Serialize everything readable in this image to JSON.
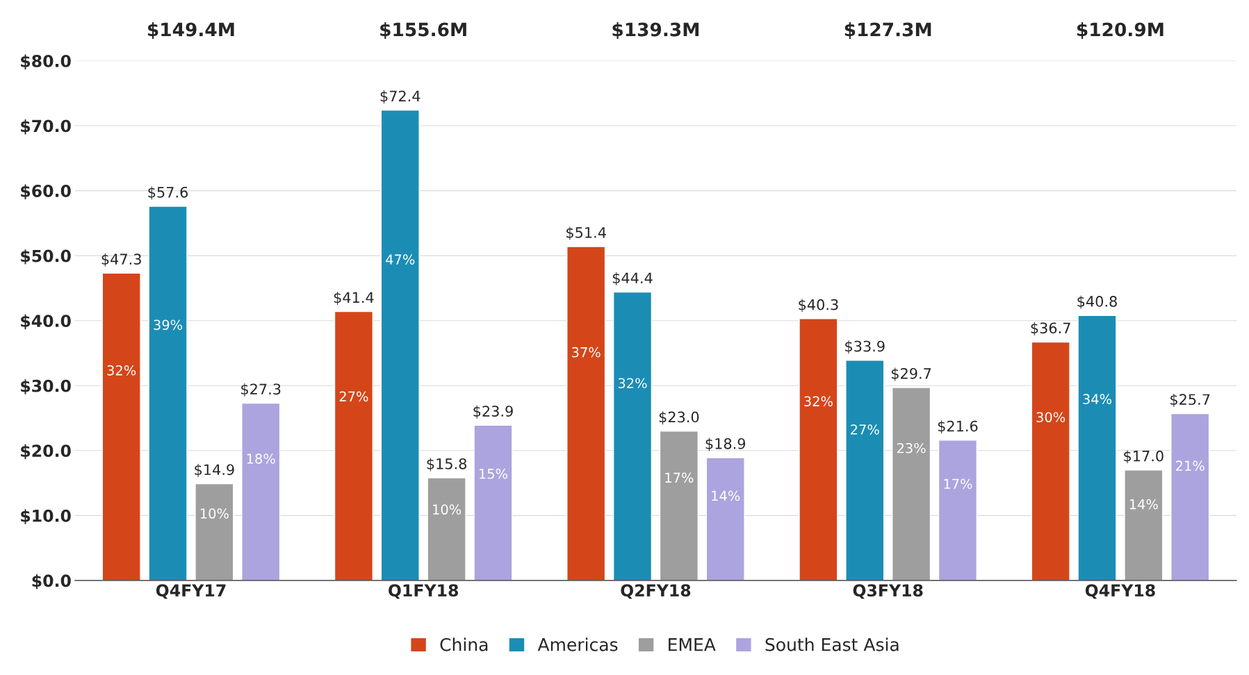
{
  "chart_data": {
    "type": "bar",
    "categories": [
      "Q4FY17",
      "Q1FY18",
      "Q2FY18",
      "Q3FY18",
      "Q4FY18"
    ],
    "series": [
      {
        "name": "China",
        "color": "#d4461a",
        "values": [
          47.3,
          41.4,
          51.4,
          40.3,
          36.7
        ],
        "value_labels": [
          "$47.3",
          "$41.4",
          "$51.4",
          "$40.3",
          "$36.7"
        ]
      },
      {
        "name": "Americas",
        "color": "#1b8db5",
        "values": [
          57.6,
          72.4,
          44.4,
          33.9,
          40.8
        ],
        "value_labels": [
          "$57.6",
          "$72.4",
          "$44.4",
          "$33.9",
          "$40.8"
        ]
      },
      {
        "name": "EMEA",
        "color": "#9e9e9e",
        "values": [
          14.9,
          15.8,
          23.0,
          29.7,
          17.0
        ],
        "value_labels": [
          "$14.9",
          "$15.8",
          "$23.0",
          "$29.7",
          "$17.0"
        ]
      },
      {
        "name": "South East Asia",
        "color": "#aca4de",
        "values": [
          27.3,
          23.9,
          18.9,
          21.6,
          25.7
        ],
        "value_labels": [
          "$27.3",
          "$23.9",
          "$18.9",
          "$21.6",
          "$25.7"
        ]
      }
    ],
    "annotations": [
      "$149.4M",
      "$155.6M",
      "$139.3M",
      "$127.3M",
      "$120.9M",
      "32%",
      "27%",
      "37%",
      "32%",
      "30%",
      "39%",
      "47%",
      "32%",
      "27%",
      "34%",
      "10%",
      "10%",
      "17%",
      "23%",
      "14%",
      "18%",
      "15%",
      "14%",
      "17%",
      "21%"
    ],
    "ylim": [
      0,
      80
    ],
    "yticks": [
      {
        "value": 0,
        "label": "$0.0"
      },
      {
        "value": 10,
        "label": "$10.0"
      },
      {
        "value": 20,
        "label": "$20.0"
      },
      {
        "value": 30,
        "label": "$30.0"
      },
      {
        "value": 40,
        "label": "$40.0"
      },
      {
        "value": 50,
        "label": "$50.0"
      },
      {
        "value": 60,
        "label": "$60.0"
      },
      {
        "value": 70,
        "label": "$70.0"
      },
      {
        "value": 80,
        "label": "$80.0"
      }
    ],
    "grid": "y",
    "legend": "bottom"
  }
}
